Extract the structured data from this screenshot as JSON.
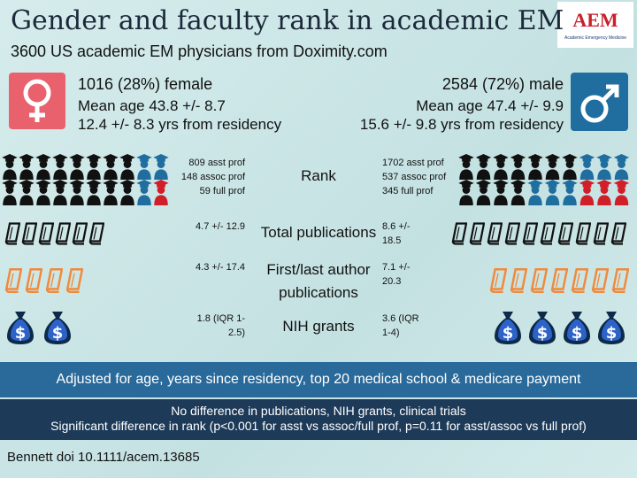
{
  "header": {
    "title": "Gender and faculty rank in academic EM",
    "subtitle": "3600 US academic EM physicians from Doximity.com",
    "logo": "AEM",
    "logo_caption": "Academic Emergency Medicine"
  },
  "female": {
    "count": "1016 (28%) female",
    "age": "Mean age 43.8 +/- 8.7",
    "residency": "12.4 +/- 8.3 yrs from residency"
  },
  "male": {
    "count": "2584 (72%) male",
    "age": "Mean age 47.4 +/- 9.9",
    "residency": "15.6 +/- 9.8 yrs from residency"
  },
  "rows": [
    {
      "label": "Rank",
      "female": [
        "809 asst prof",
        "148 assoc prof",
        "59 full prof"
      ],
      "male": [
        "1702 asst prof",
        "537 assoc prof",
        "345 full prof"
      ]
    },
    {
      "label": "Total publications",
      "female": [
        "4.7 +/- 12.9"
      ],
      "male": [
        "8.6 +/- 18.5"
      ]
    },
    {
      "label": "First/last author publications",
      "female": [
        "4.3 +/- 17.4"
      ],
      "male": [
        "7.1 +/- 20.3"
      ]
    },
    {
      "label": "NIH grants",
      "female": [
        "1.8 (IQR 1-2.5)"
      ],
      "male": [
        "3.6 (IQR 1-4)"
      ]
    }
  ],
  "footer": {
    "adjusted": "Adjusted for age, years since residency, top 20 medical school & medicare payment",
    "findings": [
      "No difference in publications, NIH grants, clinical trials",
      "Significant difference in rank (p<0.001 for asst vs assoc/full prof, p=0.11 for asst/assoc vs full prof)"
    ],
    "citation": "Bennett doi 10.1111/acem.13685"
  }
}
